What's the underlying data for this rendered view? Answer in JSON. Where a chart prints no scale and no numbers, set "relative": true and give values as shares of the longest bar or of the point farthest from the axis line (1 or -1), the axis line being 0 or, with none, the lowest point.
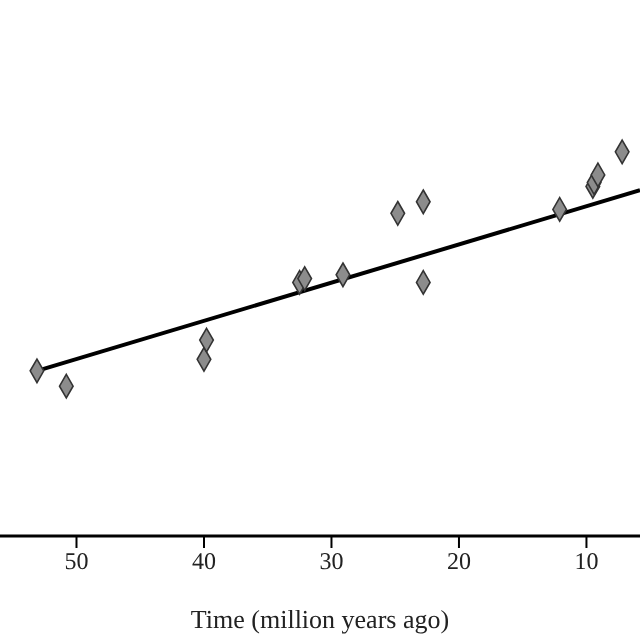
{
  "chart_data": {
    "type": "scatter",
    "xlabel": "Time (million years ago)",
    "relative": true,
    "xlim": [
      56,
      5.8
    ],
    "xticks": [
      50,
      40,
      30,
      20,
      10
    ],
    "grid": false,
    "marker": "diamond",
    "series": [
      {
        "color": "#8c8c8c",
        "x": [
          53.1,
          50.8,
          40.0,
          39.8,
          32.5,
          32.1,
          29.1,
          24.8,
          22.8,
          22.8,
          12.1,
          9.5,
          9.4,
          9.1,
          7.2
        ],
        "values": [
          0.43,
          0.39,
          0.46,
          0.51,
          0.66,
          0.67,
          0.68,
          0.84,
          0.87,
          0.66,
          0.85,
          0.91,
          0.92,
          0.94,
          1.0
        ]
      },
      {
        "type": "line",
        "color": "#000000",
        "marker": "none",
        "line_style": "solid",
        "x": [
          53.1,
          5.8
        ],
        "values": [
          0.43,
          0.9
        ]
      }
    ]
  }
}
